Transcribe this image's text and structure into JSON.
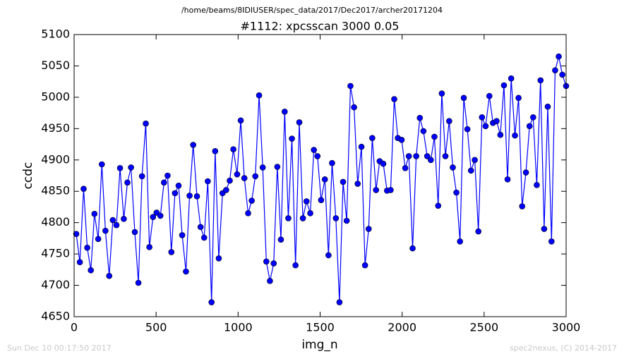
{
  "chart_data": {
    "type": "line",
    "title": "/home/beams/8IDIUSER/spec_data/2017/Dec2017/archer20171204",
    "subtitle": "#1112: xpcsscan 3000 0.05",
    "x_label": "img_n",
    "y_label": "ccdc",
    "footer_left": "Sun Dec 10 00:17:50 2017",
    "footer_right": "spec2nexus, (C) 2014-2017",
    "x": [
      13,
      35,
      58,
      80,
      102,
      124,
      147,
      169,
      191,
      214,
      236,
      258,
      280,
      303,
      325,
      347,
      370,
      392,
      414,
      437,
      459,
      481,
      503,
      526,
      548,
      570,
      593,
      615,
      637,
      659,
      682,
      704,
      726,
      749,
      771,
      793,
      815,
      838,
      860,
      882,
      905,
      927,
      949,
      971,
      994,
      1016,
      1038,
      1061,
      1083,
      1105,
      1128,
      1150,
      1172,
      1194,
      1217,
      1239,
      1261,
      1284,
      1306,
      1328,
      1350,
      1373,
      1395,
      1417,
      1440,
      1462,
      1484,
      1506,
      1529,
      1551,
      1573,
      1596,
      1618,
      1640,
      1662,
      1685,
      1707,
      1729,
      1752,
      1774,
      1796,
      1818,
      1841,
      1863,
      1885,
      1908,
      1930,
      1952,
      1974,
      1997,
      2019,
      2041,
      2064,
      2086,
      2108,
      2130,
      2153,
      2175,
      2197,
      2220,
      2242,
      2264,
      2287,
      2309,
      2331,
      2353,
      2376,
      2398,
      2420,
      2443,
      2465,
      2487,
      2509,
      2532,
      2554,
      2576,
      2599,
      2621,
      2643,
      2665,
      2688,
      2710,
      2732,
      2755,
      2777,
      2799,
      2821,
      2844,
      2866,
      2888,
      2911,
      2933,
      2955,
      2977,
      3000
    ],
    "series": [
      {
        "name": "ccdc",
        "color": "#0000ff",
        "values": [
          4782,
          4737,
          4854,
          4760,
          4724,
          4814,
          4774,
          4893,
          4787,
          4715,
          4804,
          4796,
          4887,
          4806,
          4864,
          4888,
          4785,
          4704,
          4874,
          4958,
          4761,
          4809,
          4816,
          4811,
          4864,
          4875,
          4753,
          4847,
          4859,
          4780,
          4722,
          4843,
          4924,
          4842,
          4793,
          4776,
          4866,
          4673,
          4914,
          4743,
          4847,
          4852,
          4867,
          4917,
          4877,
          4963,
          4871,
          4815,
          4835,
          4874,
          5003,
          4888,
          4738,
          4707,
          4735,
          4889,
          4773,
          4977,
          4807,
          4934,
          4732,
          4960,
          4807,
          4834,
          4815,
          4916,
          4906,
          4836,
          4869,
          4748,
          4895,
          4807,
          4673,
          4865,
          4803,
          5018,
          4984,
          4862,
          4921,
          4732,
          4790,
          4935,
          4852,
          4898,
          4894,
          4851,
          4852,
          4997,
          4935,
          4932,
          4887,
          4906,
          4759,
          4906,
          4967,
          4946,
          4906,
          4900,
          4937,
          4827,
          5006,
          4906,
          4962,
          4888,
          4848,
          4770,
          4999,
          4949,
          4883,
          4900,
          4786,
          4968,
          4954,
          5002,
          4959,
          4962,
          4940,
          5019,
          4869,
          5030,
          4939,
          4999,
          4826,
          4880,
          4954,
          4968,
          4860,
          5027,
          4790,
          4985,
          4770,
          5043,
          5065,
          5036,
          5018
        ]
      }
    ],
    "xlim": [
      0,
      3000
    ],
    "xticks": [
      0,
      500,
      1000,
      1500,
      2000,
      2500,
      3000
    ],
    "ylim": [
      4650,
      5100
    ],
    "yticks": [
      4650,
      4700,
      4750,
      4800,
      4850,
      4900,
      4950,
      5000,
      5050,
      5100
    ]
  }
}
